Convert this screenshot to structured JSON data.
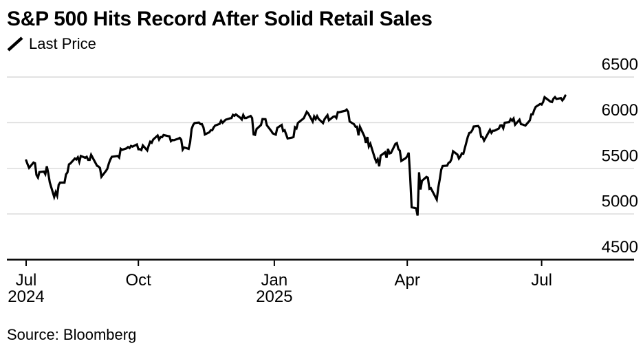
{
  "chart": {
    "title": "S&P 500 Hits Record After Solid Retail Sales",
    "legend": {
      "label": "Last Price",
      "marker": "diagonal-line-sample"
    },
    "source": "Source: Bloomberg"
  },
  "chart_data": {
    "type": "line",
    "title": "S&P 500 Hits Record After Solid Retail Sales",
    "legend_entries": [
      "Last Price"
    ],
    "legend_position": "top-left",
    "grid": "horizontal",
    "ylim": [
      4500,
      6500
    ],
    "y_ticks": [
      4500,
      5000,
      5500,
      6000,
      6500
    ],
    "y_tick_labels": [
      "4500",
      "5000",
      "5500",
      "6000",
      "6500"
    ],
    "x_range": [
      "2024-07-17",
      "2025-07-17"
    ],
    "x_ticks": [
      {
        "date": "2024-07-17",
        "label": "Jul",
        "year": "2024"
      },
      {
        "date": "2024-10-01",
        "label": "Oct"
      },
      {
        "date": "2025-01-01",
        "label": "Jan",
        "year": "2025"
      },
      {
        "date": "2025-04-01",
        "label": "Apr"
      },
      {
        "date": "2025-07-01",
        "label": "Jul"
      }
    ],
    "colors": {
      "line": "#000000",
      "grid": "#d8d8d8",
      "axis": "#000000",
      "text": "#000000"
    },
    "series": [
      {
        "name": "Last Price",
        "dates": [
          "2024-07-17",
          "2024-07-18",
          "2024-07-19",
          "2024-07-22",
          "2024-07-23",
          "2024-07-24",
          "2024-07-25",
          "2024-07-26",
          "2024-07-29",
          "2024-07-30",
          "2024-07-31",
          "2024-08-01",
          "2024-08-02",
          "2024-08-05",
          "2024-08-06",
          "2024-08-07",
          "2024-08-08",
          "2024-08-09",
          "2024-08-12",
          "2024-08-13",
          "2024-08-14",
          "2024-08-15",
          "2024-08-16",
          "2024-08-19",
          "2024-08-20",
          "2024-08-21",
          "2024-08-22",
          "2024-08-23",
          "2024-08-26",
          "2024-08-27",
          "2024-08-28",
          "2024-08-29",
          "2024-08-30",
          "2024-09-03",
          "2024-09-04",
          "2024-09-05",
          "2024-09-06",
          "2024-09-09",
          "2024-09-10",
          "2024-09-11",
          "2024-09-12",
          "2024-09-13",
          "2024-09-16",
          "2024-09-17",
          "2024-09-18",
          "2024-09-19",
          "2024-09-20",
          "2024-09-23",
          "2024-09-24",
          "2024-09-25",
          "2024-09-26",
          "2024-09-27",
          "2024-09-30",
          "2024-10-01",
          "2024-10-02",
          "2024-10-03",
          "2024-10-04",
          "2024-10-07",
          "2024-10-08",
          "2024-10-09",
          "2024-10-10",
          "2024-10-11",
          "2024-10-14",
          "2024-10-15",
          "2024-10-16",
          "2024-10-17",
          "2024-10-18",
          "2024-10-21",
          "2024-10-22",
          "2024-10-23",
          "2024-10-24",
          "2024-10-25",
          "2024-10-28",
          "2024-10-29",
          "2024-10-30",
          "2024-10-31",
          "2024-11-01",
          "2024-11-04",
          "2024-11-05",
          "2024-11-06",
          "2024-11-07",
          "2024-11-08",
          "2024-11-11",
          "2024-11-12",
          "2024-11-13",
          "2024-11-14",
          "2024-11-15",
          "2024-11-18",
          "2024-11-19",
          "2024-11-20",
          "2024-11-21",
          "2024-11-22",
          "2024-11-25",
          "2024-11-26",
          "2024-11-27",
          "2024-11-29",
          "2024-12-02",
          "2024-12-03",
          "2024-12-04",
          "2024-12-05",
          "2024-12-06",
          "2024-12-09",
          "2024-12-10",
          "2024-12-11",
          "2024-12-12",
          "2024-12-13",
          "2024-12-16",
          "2024-12-17",
          "2024-12-18",
          "2024-12-19",
          "2024-12-20",
          "2024-12-23",
          "2024-12-24",
          "2024-12-26",
          "2024-12-27",
          "2024-12-30",
          "2024-12-31",
          "2025-01-02",
          "2025-01-03",
          "2025-01-06",
          "2025-01-07",
          "2025-01-08",
          "2025-01-10",
          "2025-01-13",
          "2025-01-14",
          "2025-01-15",
          "2025-01-16",
          "2025-01-17",
          "2025-01-21",
          "2025-01-22",
          "2025-01-23",
          "2025-01-24",
          "2025-01-27",
          "2025-01-28",
          "2025-01-29",
          "2025-01-30",
          "2025-01-31",
          "2025-02-03",
          "2025-02-04",
          "2025-02-05",
          "2025-02-06",
          "2025-02-07",
          "2025-02-10",
          "2025-02-11",
          "2025-02-12",
          "2025-02-13",
          "2025-02-14",
          "2025-02-18",
          "2025-02-19",
          "2025-02-20",
          "2025-02-21",
          "2025-02-24",
          "2025-02-25",
          "2025-02-26",
          "2025-02-27",
          "2025-02-28",
          "2025-03-03",
          "2025-03-04",
          "2025-03-05",
          "2025-03-06",
          "2025-03-07",
          "2025-03-10",
          "2025-03-11",
          "2025-03-12",
          "2025-03-13",
          "2025-03-14",
          "2025-03-17",
          "2025-03-18",
          "2025-03-19",
          "2025-03-20",
          "2025-03-21",
          "2025-03-24",
          "2025-03-25",
          "2025-03-26",
          "2025-03-27",
          "2025-03-28",
          "2025-03-31",
          "2025-04-01",
          "2025-04-02",
          "2025-04-03",
          "2025-04-04",
          "2025-04-07",
          "2025-04-08",
          "2025-04-09",
          "2025-04-10",
          "2025-04-11",
          "2025-04-14",
          "2025-04-15",
          "2025-04-16",
          "2025-04-17",
          "2025-04-21",
          "2025-04-22",
          "2025-04-23",
          "2025-04-24",
          "2025-04-25",
          "2025-04-28",
          "2025-04-29",
          "2025-04-30",
          "2025-05-01",
          "2025-05-02",
          "2025-05-05",
          "2025-05-06",
          "2025-05-07",
          "2025-05-08",
          "2025-05-09",
          "2025-05-12",
          "2025-05-13",
          "2025-05-14",
          "2025-05-15",
          "2025-05-16",
          "2025-05-19",
          "2025-05-20",
          "2025-05-21",
          "2025-05-22",
          "2025-05-23",
          "2025-05-27",
          "2025-05-28",
          "2025-05-29",
          "2025-05-30",
          "2025-06-02",
          "2025-06-03",
          "2025-06-04",
          "2025-06-05",
          "2025-06-06",
          "2025-06-09",
          "2025-06-10",
          "2025-06-11",
          "2025-06-12",
          "2025-06-13",
          "2025-06-16",
          "2025-06-17",
          "2025-06-18",
          "2025-06-20",
          "2025-06-23",
          "2025-06-24",
          "2025-06-25",
          "2025-06-26",
          "2025-06-27",
          "2025-06-30",
          "2025-07-01",
          "2025-07-02",
          "2025-07-03",
          "2025-07-07",
          "2025-07-08",
          "2025-07-09",
          "2025-07-10",
          "2025-07-11",
          "2025-07-14",
          "2025-07-15",
          "2025-07-16",
          "2025-07-17"
        ],
        "values": [
          5588,
          5545,
          5505,
          5564,
          5556,
          5427,
          5399,
          5459,
          5464,
          5436,
          5522,
          5446,
          5346,
          5186,
          5240,
          5200,
          5319,
          5344,
          5344,
          5434,
          5455,
          5543,
          5554,
          5608,
          5597,
          5621,
          5571,
          5635,
          5616,
          5626,
          5592,
          5592,
          5648,
          5528,
          5520,
          5503,
          5408,
          5471,
          5496,
          5554,
          5595,
          5626,
          5633,
          5635,
          5618,
          5714,
          5703,
          5719,
          5733,
          5722,
          5745,
          5738,
          5762,
          5709,
          5710,
          5700,
          5751,
          5696,
          5751,
          5792,
          5780,
          5815,
          5860,
          5815,
          5842,
          5841,
          5865,
          5854,
          5851,
          5797,
          5810,
          5808,
          5824,
          5833,
          5814,
          5705,
          5729,
          5713,
          5783,
          5929,
          5973,
          5996,
          6001,
          5984,
          5985,
          5949,
          5871,
          5894,
          5917,
          5917,
          5949,
          5969,
          5987,
          6022,
          5999,
          6032,
          6047,
          6050,
          6086,
          6075,
          6090,
          6053,
          6035,
          6084,
          6051,
          6051,
          6074,
          6051,
          5872,
          5867,
          5931,
          5974,
          6040,
          6038,
          5971,
          5907,
          5882,
          5869,
          5943,
          5975,
          5909,
          5918,
          5827,
          5836,
          5843,
          5950,
          5937,
          5997,
          6049,
          6086,
          6119,
          6101,
          6012,
          6068,
          6039,
          6071,
          6041,
          5995,
          6038,
          6061,
          6083,
          6026,
          6066,
          6069,
          6052,
          6115,
          6115,
          6130,
          6144,
          6118,
          6013,
          5983,
          5955,
          5956,
          5862,
          5955,
          5850,
          5778,
          5843,
          5739,
          5770,
          5615,
          5572,
          5599,
          5522,
          5639,
          5675,
          5615,
          5713,
          5663,
          5668,
          5768,
          5777,
          5712,
          5693,
          5581,
          5612,
          5633,
          5671,
          5396,
          5074,
          5062,
          4983,
          5457,
          5268,
          5363,
          5406,
          5397,
          5276,
          5283,
          5158,
          5288,
          5376,
          5485,
          5525,
          5529,
          5561,
          5569,
          5604,
          5687,
          5650,
          5607,
          5631,
          5664,
          5660,
          5844,
          5887,
          5893,
          5916,
          5958,
          5964,
          5941,
          5845,
          5842,
          5803,
          5922,
          5889,
          5912,
          5912,
          5936,
          5970,
          5971,
          5939,
          6000,
          6006,
          6039,
          6022,
          6045,
          5977,
          6033,
          5983,
          5981,
          5968,
          6025,
          6092,
          6092,
          6141,
          6173,
          6205,
          6198,
          6227,
          6279,
          6230,
          6226,
          6263,
          6280,
          6260,
          6269,
          6244,
          6264,
          6297
        ]
      }
    ]
  }
}
